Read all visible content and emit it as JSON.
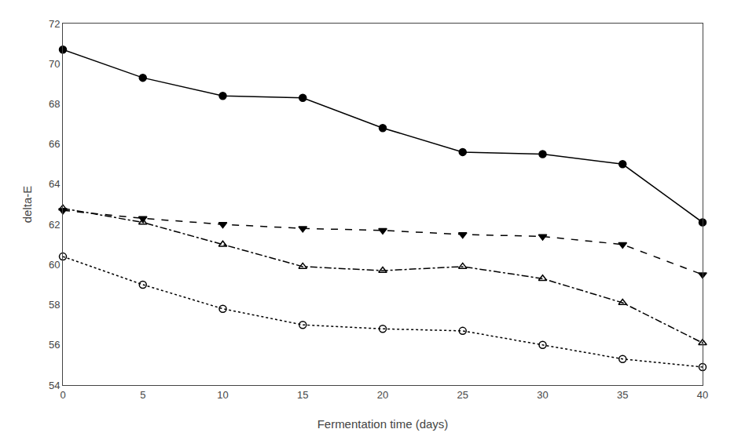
{
  "chart_data": {
    "type": "line",
    "x": [
      0,
      5,
      10,
      15,
      20,
      25,
      30,
      35,
      40
    ],
    "series": [
      {
        "color": "#000000",
        "line_style": "solid",
        "marker": "circle",
        "values": [
          70.7,
          69.3,
          68.4,
          68.3,
          66.8,
          65.6,
          65.5,
          65.0,
          62.1
        ]
      },
      {
        "color": "#000000",
        "line_style": "dash",
        "marker": "triangle-down",
        "values": [
          62.7,
          62.3,
          62.0,
          61.8,
          61.7,
          61.5,
          61.4,
          61.0,
          59.5
        ]
      },
      {
        "color": "#000000",
        "line_style": "dashdot",
        "marker": "triangle-up-open",
        "values": [
          62.8,
          62.1,
          61.0,
          59.9,
          59.7,
          59.9,
          59.3,
          58.1,
          56.1
        ]
      },
      {
        "color": "#000000",
        "line_style": "dot",
        "marker": "circle-open",
        "values": [
          60.4,
          59.0,
          57.8,
          57.0,
          56.8,
          56.7,
          56.0,
          55.3,
          54.9
        ]
      }
    ],
    "x_label": "Fermentation time (days)",
    "y_label": "delta-E",
    "xlim": [
      0,
      40
    ],
    "ylim": [
      54,
      72
    ],
    "xticks": [
      0,
      5,
      10,
      15,
      20,
      25,
      30,
      35,
      40
    ],
    "yticks": [
      54,
      56,
      58,
      60,
      62,
      64,
      66,
      68,
      70,
      72
    ],
    "grid": false
  }
}
